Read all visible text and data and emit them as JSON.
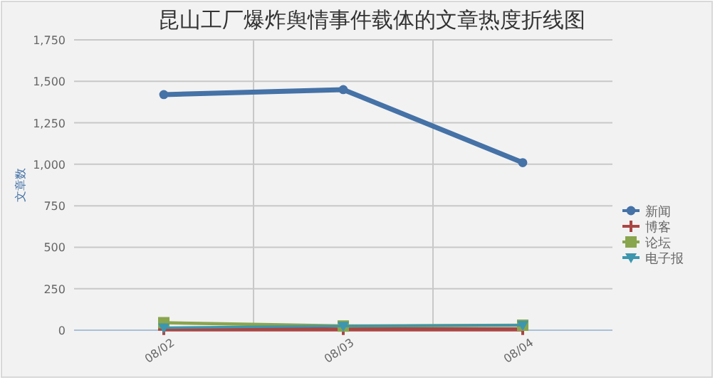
{
  "chart_data": {
    "type": "line",
    "title": "昆山工厂爆炸舆情事件载体的文章热度折线图",
    "ylabel": "文章数",
    "categories": [
      "08/02",
      "08/03",
      "08/04"
    ],
    "series": [
      {
        "name": "新闻",
        "color": "#4572a7",
        "values": [
          1420,
          1450,
          1010
        ],
        "marker": "circle"
      },
      {
        "name": "博客",
        "color": "#aa4643",
        "values": [
          5,
          5,
          5
        ],
        "marker": "cross"
      },
      {
        "name": "论坛",
        "color": "#89a54e",
        "values": [
          45,
          25,
          30
        ],
        "marker": "square"
      },
      {
        "name": "电子报",
        "color": "#3d96ae",
        "values": [
          15,
          25,
          30
        ],
        "marker": "triangle"
      }
    ],
    "ylim": [
      0,
      1750
    ],
    "yticks": [
      {
        "value": 0,
        "label": "0"
      },
      {
        "value": 250,
        "label": "250"
      },
      {
        "value": 500,
        "label": "500"
      },
      {
        "value": 750,
        "label": "750"
      },
      {
        "value": 1000,
        "label": "1,000"
      },
      {
        "value": 1250,
        "label": "1,250"
      },
      {
        "value": 1500,
        "label": "1,500"
      },
      {
        "value": 1750,
        "label": "1,750"
      }
    ],
    "grid": true,
    "legend": "right"
  }
}
